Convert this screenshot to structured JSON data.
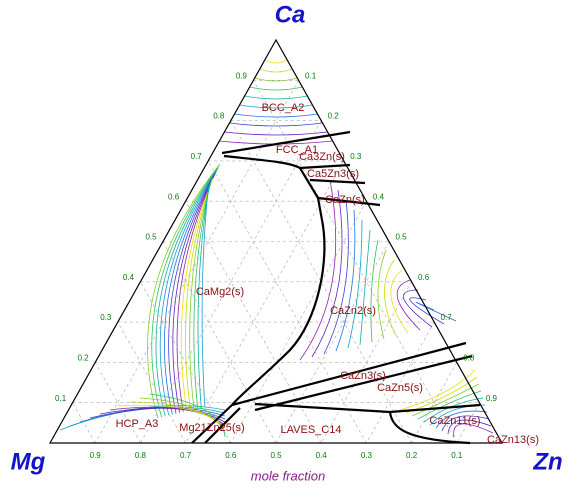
{
  "chart_data": {
    "type": "ternary",
    "vertices": [
      "Ca",
      "Mg",
      "Zn"
    ],
    "axis_label": "mole fraction",
    "bottom_ticks": [
      0.9,
      0.8,
      0.7,
      0.6,
      0.5,
      0.4,
      0.3,
      0.2,
      0.1
    ],
    "left_ticks": [
      0.1,
      0.2,
      0.3,
      0.4,
      0.5,
      0.6,
      0.7,
      0.8,
      0.9
    ],
    "right_ticks": [
      0.1,
      0.2,
      0.3,
      0.4,
      0.5,
      0.6,
      0.7,
      0.8,
      0.9
    ],
    "grid": true,
    "phases": [
      "BCC_A2",
      "FCC_A1",
      "Ca3Zn(s)",
      "Ca5Zn3(s)",
      "CaZn(s)",
      "CaMg2(s)",
      "CaZn2(s)",
      "CaZn3(s)",
      "CaZn5(s)",
      "HCP_A3",
      "Mg21Zn25(s)",
      "LAVES_C14",
      "CaZn11(s)",
      "CaZn13(s)"
    ]
  }
}
